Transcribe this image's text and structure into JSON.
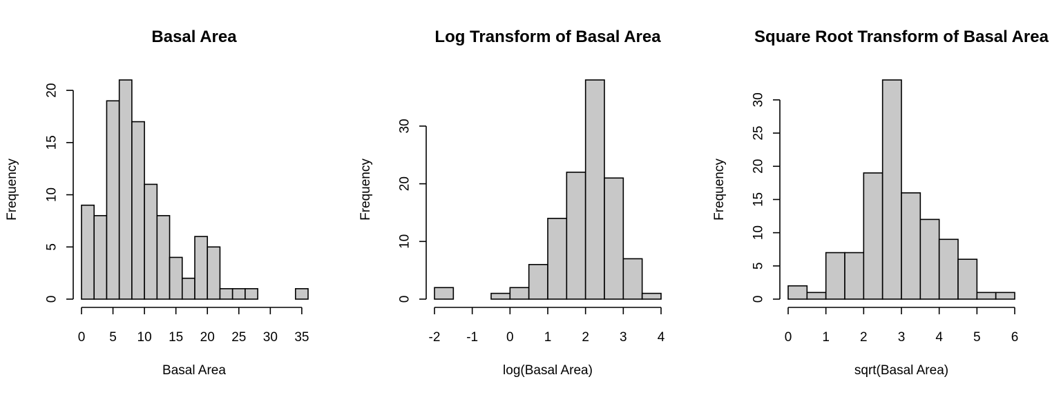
{
  "chart_data": [
    {
      "type": "bar",
      "title": "Basal Area",
      "xlabel": "Basal Area",
      "ylabel": "Frequency",
      "bin_edges": [
        0,
        2,
        4,
        6,
        8,
        10,
        12,
        14,
        16,
        18,
        20,
        22,
        24,
        26,
        28,
        30,
        32,
        34,
        36
      ],
      "values": [
        9,
        8,
        19,
        21,
        17,
        11,
        8,
        4,
        2,
        6,
        5,
        1,
        1,
        1,
        0,
        0,
        0,
        1
      ],
      "xticks": [
        0,
        5,
        10,
        15,
        20,
        25,
        30,
        35
      ],
      "xtick_labels": [
        "0",
        "5",
        "10",
        "15",
        "20",
        "25",
        "30",
        "35"
      ],
      "yticks": [
        0,
        5,
        10,
        15,
        20
      ],
      "ytick_labels": [
        "0",
        "5",
        "10",
        "15",
        "20"
      ],
      "xlim": [
        0,
        36
      ],
      "ylim": [
        0,
        21
      ],
      "bar_color": "#c8c8c8",
      "grid": false
    },
    {
      "type": "bar",
      "title": "Log Transform of Basal Area",
      "xlabel": "log(Basal Area)",
      "ylabel": "Frequency",
      "bin_edges": [
        -2,
        -1.5,
        -1,
        -0.5,
        0,
        0.5,
        1,
        1.5,
        2,
        2.5,
        3,
        3.5,
        4
      ],
      "values": [
        2,
        0,
        0,
        1,
        2,
        6,
        14,
        22,
        38,
        21,
        7,
        1
      ],
      "xticks": [
        -2,
        -1,
        0,
        1,
        2,
        3,
        4
      ],
      "xtick_labels": [
        "-2",
        "-1",
        "0",
        "1",
        "2",
        "3",
        "4"
      ],
      "yticks": [
        0,
        10,
        20,
        30
      ],
      "ytick_labels": [
        "0",
        "10",
        "20",
        "30"
      ],
      "xlim": [
        -2,
        4
      ],
      "ylim": [
        0,
        38
      ],
      "bar_color": "#c8c8c8",
      "grid": false
    },
    {
      "type": "bar",
      "title": "Square Root Transform of Basal Area",
      "xlabel": "sqrt(Basal Area)",
      "ylabel": "Frequency",
      "bin_edges": [
        0,
        0.5,
        1,
        1.5,
        2,
        2.5,
        3,
        3.5,
        4,
        4.5,
        5,
        5.5,
        6
      ],
      "values": [
        2,
        1,
        7,
        7,
        19,
        33,
        16,
        12,
        9,
        6,
        1,
        1
      ],
      "xticks": [
        0,
        1,
        2,
        3,
        4,
        5,
        6
      ],
      "xtick_labels": [
        "0",
        "1",
        "2",
        "3",
        "4",
        "5",
        "6"
      ],
      "yticks": [
        0,
        5,
        10,
        15,
        20,
        25,
        30
      ],
      "ytick_labels": [
        "0",
        "5",
        "10",
        "15",
        "20",
        "25",
        "30"
      ],
      "xlim": [
        0,
        6
      ],
      "ylim": [
        0,
        33
      ],
      "bar_color": "#c8c8c8",
      "grid": false
    }
  ]
}
